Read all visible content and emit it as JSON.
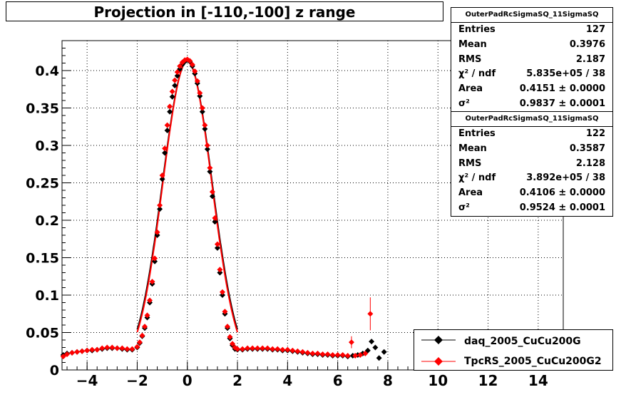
{
  "title": "Projection in [-110,-100] z range",
  "stats": [
    {
      "name": "OuterPadRcSigmaSQ_11SigmaSQ",
      "rows": [
        {
          "key": "Entries",
          "value": "127"
        },
        {
          "key": "Mean",
          "value": "0.3976"
        },
        {
          "key": "RMS",
          "value": "2.187"
        },
        {
          "key": "χ² / ndf",
          "value": "5.835e+05 / 38"
        },
        {
          "key": "Area",
          "value": "0.4151 ± 0.0000"
        },
        {
          "key": "σ²",
          "value": "0.9837 ± 0.0001"
        }
      ]
    },
    {
      "name": "OuterPadRcSigmaSQ_11SigmaSQ",
      "rows": [
        {
          "key": "Entries",
          "value": "122"
        },
        {
          "key": "Mean",
          "value": "0.3587"
        },
        {
          "key": "RMS",
          "value": "2.128"
        },
        {
          "key": "χ² / ndf",
          "value": "3.892e+05 / 38"
        },
        {
          "key": "Area",
          "value": "0.4106 ± 0.0000"
        },
        {
          "key": "σ²",
          "value": "0.9524 ± 0.0001"
        }
      ]
    }
  ],
  "legend": [
    {
      "label": "daq_2005_CuCu200G",
      "color": "#000000"
    },
    {
      "label": "TpcRS_2005_CuCu200G2",
      "color": "#ff0000"
    }
  ],
  "chart_data": {
    "type": "scatter",
    "title": "Projection in [-110,-100] z range",
    "xlim": [
      -5,
      15
    ],
    "ylim": [
      0,
      0.44
    ],
    "x_ticks": [
      "-4",
      "-2",
      "0",
      "2",
      "4",
      "6",
      "8",
      "10",
      "12",
      "14"
    ],
    "y_ticks": [
      "0",
      "0.05",
      "0.1",
      "0.15",
      "0.2",
      "0.25",
      "0.3",
      "0.35",
      "0.4"
    ],
    "grid": true,
    "legend_position": "bottom-right",
    "series": [
      {
        "name": "daq_2005_CuCu200G",
        "color": "#000000",
        "points": [
          [
            -4.95,
            0.02
          ],
          [
            -4.8,
            0.022
          ],
          [
            -4.6,
            0.023
          ],
          [
            -4.4,
            0.024
          ],
          [
            -4.2,
            0.025
          ],
          [
            -4.0,
            0.026
          ],
          [
            -3.8,
            0.026
          ],
          [
            -3.6,
            0.027
          ],
          [
            -3.4,
            0.028
          ],
          [
            -3.2,
            0.029
          ],
          [
            -3.0,
            0.029
          ],
          [
            -2.8,
            0.029
          ],
          [
            -2.6,
            0.028
          ],
          [
            -2.4,
            0.027
          ],
          [
            -2.2,
            0.027
          ],
          [
            -2.0,
            0.03
          ],
          [
            -1.9,
            0.036
          ],
          [
            -1.8,
            0.045
          ],
          [
            -1.7,
            0.056
          ],
          [
            -1.6,
            0.07
          ],
          [
            -1.5,
            0.09
          ],
          [
            -1.4,
            0.115
          ],
          [
            -1.3,
            0.145
          ],
          [
            -1.2,
            0.18
          ],
          [
            -1.1,
            0.215
          ],
          [
            -1.0,
            0.255
          ],
          [
            -0.9,
            0.29
          ],
          [
            -0.8,
            0.32
          ],
          [
            -0.7,
            0.345
          ],
          [
            -0.6,
            0.365
          ],
          [
            -0.5,
            0.38
          ],
          [
            -0.4,
            0.393
          ],
          [
            -0.3,
            0.402
          ],
          [
            -0.2,
            0.408
          ],
          [
            -0.1,
            0.412
          ],
          [
            0.0,
            0.414
          ],
          [
            0.1,
            0.412
          ],
          [
            0.2,
            0.406
          ],
          [
            0.3,
            0.396
          ],
          [
            0.4,
            0.383
          ],
          [
            0.5,
            0.366
          ],
          [
            0.6,
            0.345
          ],
          [
            0.7,
            0.322
          ],
          [
            0.8,
            0.295
          ],
          [
            0.9,
            0.265
          ],
          [
            1.0,
            0.232
          ],
          [
            1.1,
            0.198
          ],
          [
            1.2,
            0.163
          ],
          [
            1.3,
            0.13
          ],
          [
            1.4,
            0.1
          ],
          [
            1.5,
            0.075
          ],
          [
            1.6,
            0.056
          ],
          [
            1.7,
            0.042
          ],
          [
            1.8,
            0.033
          ],
          [
            1.9,
            0.028
          ],
          [
            2.0,
            0.027
          ],
          [
            2.2,
            0.027
          ],
          [
            2.4,
            0.028
          ],
          [
            2.6,
            0.028
          ],
          [
            2.8,
            0.028
          ],
          [
            3.0,
            0.028
          ],
          [
            3.2,
            0.028
          ],
          [
            3.4,
            0.027
          ],
          [
            3.6,
            0.027
          ],
          [
            3.8,
            0.026
          ],
          [
            4.0,
            0.026
          ],
          [
            4.2,
            0.025
          ],
          [
            4.4,
            0.024
          ],
          [
            4.6,
            0.023
          ],
          [
            4.8,
            0.022
          ],
          [
            5.0,
            0.021
          ],
          [
            5.2,
            0.021
          ],
          [
            5.4,
            0.02
          ],
          [
            5.6,
            0.02
          ],
          [
            5.8,
            0.019
          ],
          [
            6.0,
            0.019
          ],
          [
            6.2,
            0.019
          ],
          [
            6.4,
            0.018
          ],
          [
            6.6,
            0.019
          ],
          [
            6.8,
            0.02
          ],
          [
            7.0,
            0.022
          ],
          [
            7.2,
            0.026
          ],
          [
            7.35,
            0.038
          ],
          [
            7.5,
            0.03
          ],
          [
            7.65,
            0.016
          ],
          [
            7.85,
            0.024
          ]
        ]
      },
      {
        "name": "TpcRS_2005_CuCu200G2",
        "color": "#ff0000",
        "points": [
          [
            -4.95,
            0.018
          ],
          [
            -4.8,
            0.021
          ],
          [
            -4.6,
            0.023
          ],
          [
            -4.4,
            0.024
          ],
          [
            -4.2,
            0.025
          ],
          [
            -4.0,
            0.026
          ],
          [
            -3.8,
            0.027
          ],
          [
            -3.6,
            0.027
          ],
          [
            -3.4,
            0.029
          ],
          [
            -3.2,
            0.03
          ],
          [
            -3.0,
            0.03
          ],
          [
            -2.8,
            0.029
          ],
          [
            -2.6,
            0.029
          ],
          [
            -2.4,
            0.028
          ],
          [
            -2.2,
            0.028
          ],
          [
            -2.0,
            0.031
          ],
          [
            -1.9,
            0.037
          ],
          [
            -1.8,
            0.046
          ],
          [
            -1.7,
            0.058
          ],
          [
            -1.6,
            0.073
          ],
          [
            -1.5,
            0.093
          ],
          [
            -1.4,
            0.118
          ],
          [
            -1.3,
            0.149
          ],
          [
            -1.2,
            0.184
          ],
          [
            -1.1,
            0.22
          ],
          [
            -1.0,
            0.26
          ],
          [
            -0.9,
            0.296
          ],
          [
            -0.8,
            0.327
          ],
          [
            -0.7,
            0.352
          ],
          [
            -0.6,
            0.372
          ],
          [
            -0.5,
            0.387
          ],
          [
            -0.4,
            0.398
          ],
          [
            -0.3,
            0.406
          ],
          [
            -0.2,
            0.411
          ],
          [
            -0.1,
            0.414
          ],
          [
            0.0,
            0.415
          ],
          [
            0.1,
            0.413
          ],
          [
            0.2,
            0.408
          ],
          [
            0.3,
            0.399
          ],
          [
            0.4,
            0.386
          ],
          [
            0.5,
            0.37
          ],
          [
            0.6,
            0.35
          ],
          [
            0.7,
            0.327
          ],
          [
            0.8,
            0.3
          ],
          [
            0.9,
            0.27
          ],
          [
            1.0,
            0.238
          ],
          [
            1.1,
            0.203
          ],
          [
            1.2,
            0.168
          ],
          [
            1.3,
            0.134
          ],
          [
            1.4,
            0.104
          ],
          [
            1.5,
            0.078
          ],
          [
            1.6,
            0.058
          ],
          [
            1.7,
            0.044
          ],
          [
            1.8,
            0.035
          ],
          [
            1.9,
            0.03
          ],
          [
            2.0,
            0.028
          ],
          [
            2.2,
            0.028
          ],
          [
            2.4,
            0.029
          ],
          [
            2.6,
            0.029
          ],
          [
            2.8,
            0.029
          ],
          [
            3.0,
            0.029
          ],
          [
            3.2,
            0.029
          ],
          [
            3.4,
            0.028
          ],
          [
            3.6,
            0.028
          ],
          [
            3.8,
            0.027
          ],
          [
            4.0,
            0.027
          ],
          [
            4.2,
            0.026
          ],
          [
            4.4,
            0.025
          ],
          [
            4.6,
            0.024
          ],
          [
            4.8,
            0.023
          ],
          [
            5.0,
            0.022
          ],
          [
            5.2,
            0.022
          ],
          [
            5.4,
            0.021
          ],
          [
            5.6,
            0.021
          ],
          [
            5.8,
            0.02
          ],
          [
            6.0,
            0.02
          ],
          [
            6.2,
            0.02
          ],
          [
            6.4,
            0.019
          ],
          [
            6.55,
            0.037
          ],
          [
            6.7,
            0.019
          ],
          [
            6.9,
            0.02
          ],
          [
            7.1,
            0.022
          ],
          [
            7.3,
            0.075
          ]
        ]
      }
    ]
  }
}
